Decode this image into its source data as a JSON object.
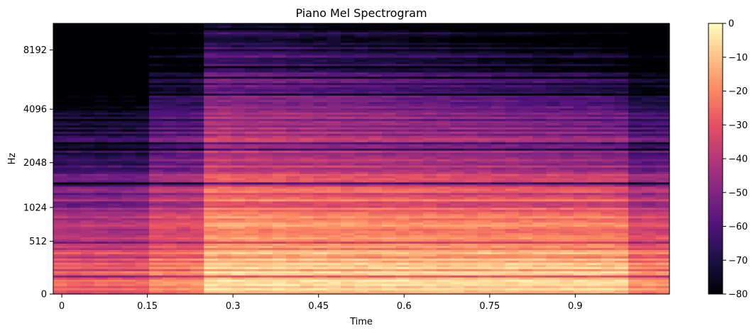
{
  "chart_data": {
    "type": "heatmap",
    "title": "Piano Mel Spectrogram",
    "xlabel": "Time",
    "ylabel": "Hz",
    "xlim": [
      -0.015,
      1.065
    ],
    "x_ticks": [
      0,
      0.15,
      0.3,
      0.45,
      0.6,
      0.75,
      0.9
    ],
    "x_tick_labels": [
      "0",
      "0.15",
      "0.3",
      "0.45",
      "0.6",
      "0.75",
      "0.9"
    ],
    "y_scale": "mel",
    "y_ticks": [
      0,
      512,
      1024,
      2048,
      4096,
      8192
    ],
    "y_tick_labels": [
      "0",
      "512",
      "1024",
      "2048",
      "4096",
      "8192"
    ],
    "y_max_hz": 11025,
    "colormap": "magma",
    "colorbar": {
      "range": [
        -80,
        0
      ],
      "ticks": [
        0,
        -10,
        -20,
        -30,
        -40,
        -50,
        -60,
        -70,
        -80
      ],
      "tick_labels": [
        "0",
        "−10",
        "−20",
        "−30",
        "−40",
        "−50",
        "−60",
        "−70",
        "−80"
      ]
    },
    "time_frames": 45,
    "mel_bins": 128,
    "onset_times": [
      0.0,
      0.16,
      0.24
    ],
    "tail_time": 1.0
  }
}
